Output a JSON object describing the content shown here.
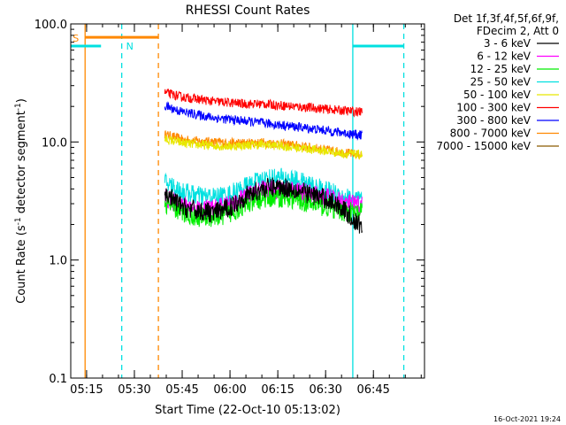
{
  "chart_data": {
    "type": "line",
    "title": "RHESSI Count Rates",
    "xlabel": "Start Time (22-Oct-10 05:13:02)",
    "ylabel_parts": [
      "Count Rate (s",
      "-1",
      " detector segment",
      "-1",
      ")"
    ],
    "yscale": "log",
    "ylim": [
      0.1,
      100.0
    ],
    "xlim_minutes": [
      0,
      111
    ],
    "x_ticks": [
      {
        "m": 4.97,
        "label": "05:15"
      },
      {
        "m": 19.97,
        "label": "05:30"
      },
      {
        "m": 34.97,
        "label": "05:45"
      },
      {
        "m": 49.97,
        "label": "06:00"
      },
      {
        "m": 64.97,
        "label": "06:15"
      },
      {
        "m": 79.97,
        "label": "06:30"
      },
      {
        "m": 94.97,
        "label": "06:45"
      }
    ],
    "y_ticks": [
      {
        "v": 0.1,
        "label": "0.1"
      },
      {
        "v": 1.0,
        "label": "1.0"
      },
      {
        "v": 10.0,
        "label": "10.0"
      },
      {
        "v": 100.0,
        "label": "100.0"
      }
    ],
    "legend_header": [
      "Det 1f,3f,4f,5f,6f,9f,",
      "FDecim 2, Att 0"
    ],
    "series": [
      {
        "name": "3 - 6 keV",
        "color": "#000000",
        "x": [
          30,
          35,
          40,
          45,
          50,
          55,
          60,
          65,
          70,
          75,
          80,
          85,
          90
        ],
        "values": [
          3.6,
          2.8,
          2.6,
          2.5,
          2.8,
          3.5,
          4.0,
          4.2,
          4.0,
          3.6,
          3.3,
          2.8,
          2.0
        ]
      },
      {
        "name": "6 - 12 keV",
        "color": "#ff00ff",
        "x": [
          30,
          35,
          40,
          45,
          50,
          55,
          60,
          65,
          70,
          75,
          80,
          85,
          90
        ],
        "values": [
          3.3,
          2.9,
          2.7,
          2.7,
          2.9,
          3.4,
          3.9,
          4.0,
          3.9,
          3.6,
          3.4,
          3.1,
          2.9
        ]
      },
      {
        "name": "12 - 25 keV",
        "color": "#00ee00",
        "x": [
          30,
          35,
          40,
          45,
          50,
          55,
          60,
          65,
          70,
          75,
          80,
          85,
          90
        ],
        "values": [
          3.0,
          2.5,
          2.3,
          2.3,
          2.5,
          2.9,
          3.3,
          3.4,
          3.3,
          3.0,
          2.8,
          2.6,
          2.5
        ]
      },
      {
        "name": "25 - 50 keV",
        "color": "#00e0e0",
        "x": [
          30,
          35,
          40,
          45,
          50,
          55,
          60,
          65,
          70,
          75,
          80,
          85,
          90
        ],
        "values": [
          4.5,
          3.8,
          3.5,
          3.4,
          3.6,
          4.2,
          4.8,
          5.0,
          4.8,
          4.3,
          3.9,
          3.5,
          3.2
        ]
      },
      {
        "name": "50 - 100 keV",
        "color": "#e8e800",
        "x": [
          30,
          35,
          40,
          45,
          50,
          55,
          60,
          65,
          70,
          75,
          80,
          85,
          90
        ],
        "values": [
          10.5,
          9.8,
          9.5,
          9.3,
          9.2,
          9.4,
          9.5,
          9.3,
          9.0,
          8.7,
          8.4,
          8.0,
          7.8
        ]
      },
      {
        "name": "100 - 300 keV",
        "color": "#ff0000",
        "x": [
          30,
          35,
          40,
          45,
          50,
          55,
          60,
          65,
          70,
          75,
          80,
          85,
          90
        ],
        "values": [
          26,
          24,
          23,
          22,
          21.5,
          21,
          21,
          20.5,
          20,
          19.5,
          19,
          18.5,
          18
        ]
      },
      {
        "name": "300 - 800 keV",
        "color": "#0000ff",
        "x": [
          30,
          35,
          40,
          45,
          50,
          55,
          60,
          65,
          70,
          75,
          80,
          85,
          90
        ],
        "values": [
          20,
          18,
          17,
          16,
          15.5,
          15,
          14.5,
          14,
          13.5,
          13,
          12.5,
          12,
          11.5
        ]
      },
      {
        "name": "800 - 7000 keV",
        "color": "#ff8800",
        "x": [
          30,
          35,
          40,
          45,
          50,
          55,
          60,
          65,
          70,
          75,
          80,
          85,
          90
        ],
        "values": [
          11.5,
          10.5,
          10.2,
          10.0,
          9.8,
          9.8,
          9.9,
          9.7,
          9.4,
          9.0,
          8.6,
          8.2,
          7.8
        ]
      },
      {
        "name": "7000 - 15000 keV",
        "color": "#8b5a00",
        "x": [],
        "values": []
      }
    ],
    "orbit_flags": {
      "saa_label": "S",
      "night_label": "N",
      "saa_color": "#ff8800",
      "night_color": "#00e0e0",
      "saa_bar": {
        "start": 4.5,
        "end": 27.5,
        "value": 77
      },
      "night_bars": [
        {
          "start": 0,
          "end": 9.5,
          "value": 65
        },
        {
          "start": 88.5,
          "end": 104.5,
          "value": 65
        }
      ],
      "solid_lines": [
        {
          "m": 4.5,
          "color": "#ff8800"
        },
        {
          "m": 88.5,
          "color": "#00e0e0"
        }
      ],
      "dashed_lines": [
        {
          "m": 16,
          "color": "#00e0e0"
        },
        {
          "m": 27.5,
          "color": "#ff8800"
        },
        {
          "m": 104.5,
          "color": "#00e0e0"
        }
      ]
    },
    "data_window_minutes": [
      29.5,
      91.5
    ],
    "grid": false,
    "legend_position": "top-right"
  },
  "footer": {
    "timestamp": "16-Oct-2021 19:24"
  }
}
